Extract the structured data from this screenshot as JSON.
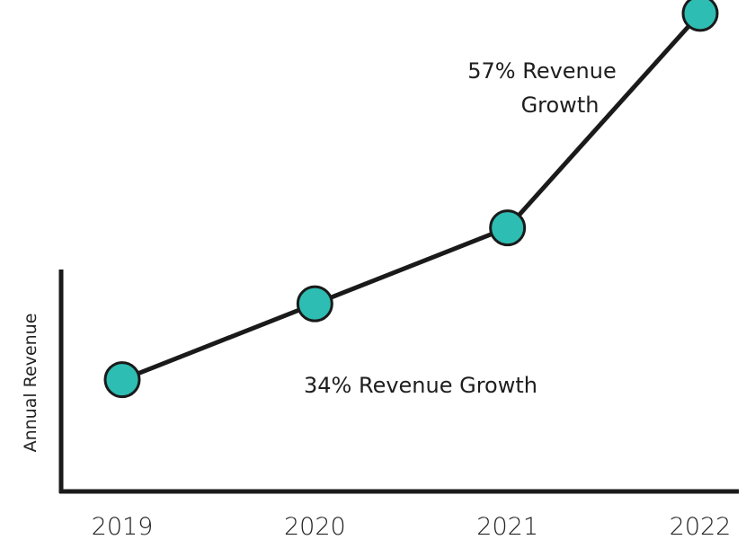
{
  "chart_data": {
    "type": "line",
    "title": "",
    "xlabel": "",
    "ylabel": "Annual Revenue",
    "categories": [
      "2019",
      "2020",
      "2021",
      "2022"
    ],
    "values": [
      1.0,
      1.34,
      1.68,
      2.64
    ],
    "ylim": [
      0.5,
      2.7
    ],
    "grid": false,
    "legend": "none",
    "annotations": [
      {
        "text": "34% Revenue Growth",
        "between": [
          "2019",
          "2021"
        ]
      },
      {
        "lines": [
          "57% Revenue",
          "Growth"
        ],
        "between": [
          "2021",
          "2022"
        ]
      }
    ],
    "colors": {
      "line": "#1a1a1a",
      "marker": "#2ebdb2",
      "marker_edge": "#1a1a1a",
      "axis": "#1a1a1a",
      "text": "#222222"
    }
  }
}
